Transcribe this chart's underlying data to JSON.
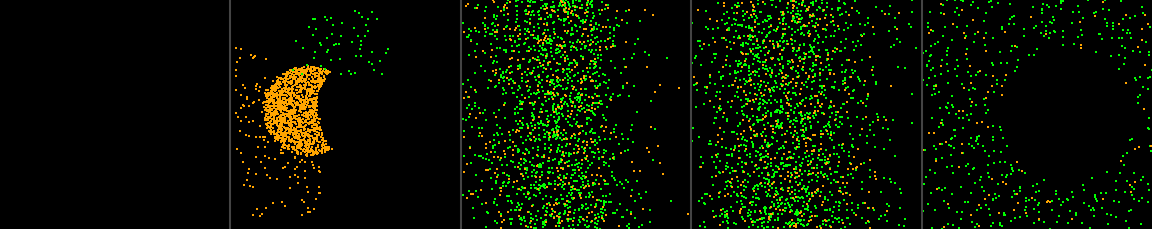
{
  "n_panels": 5,
  "background_color": "#000000",
  "green_color": "#00ff00",
  "orange_color": "#ffa500",
  "fig_width": 11.52,
  "fig_height": 2.3,
  "seed": 42
}
